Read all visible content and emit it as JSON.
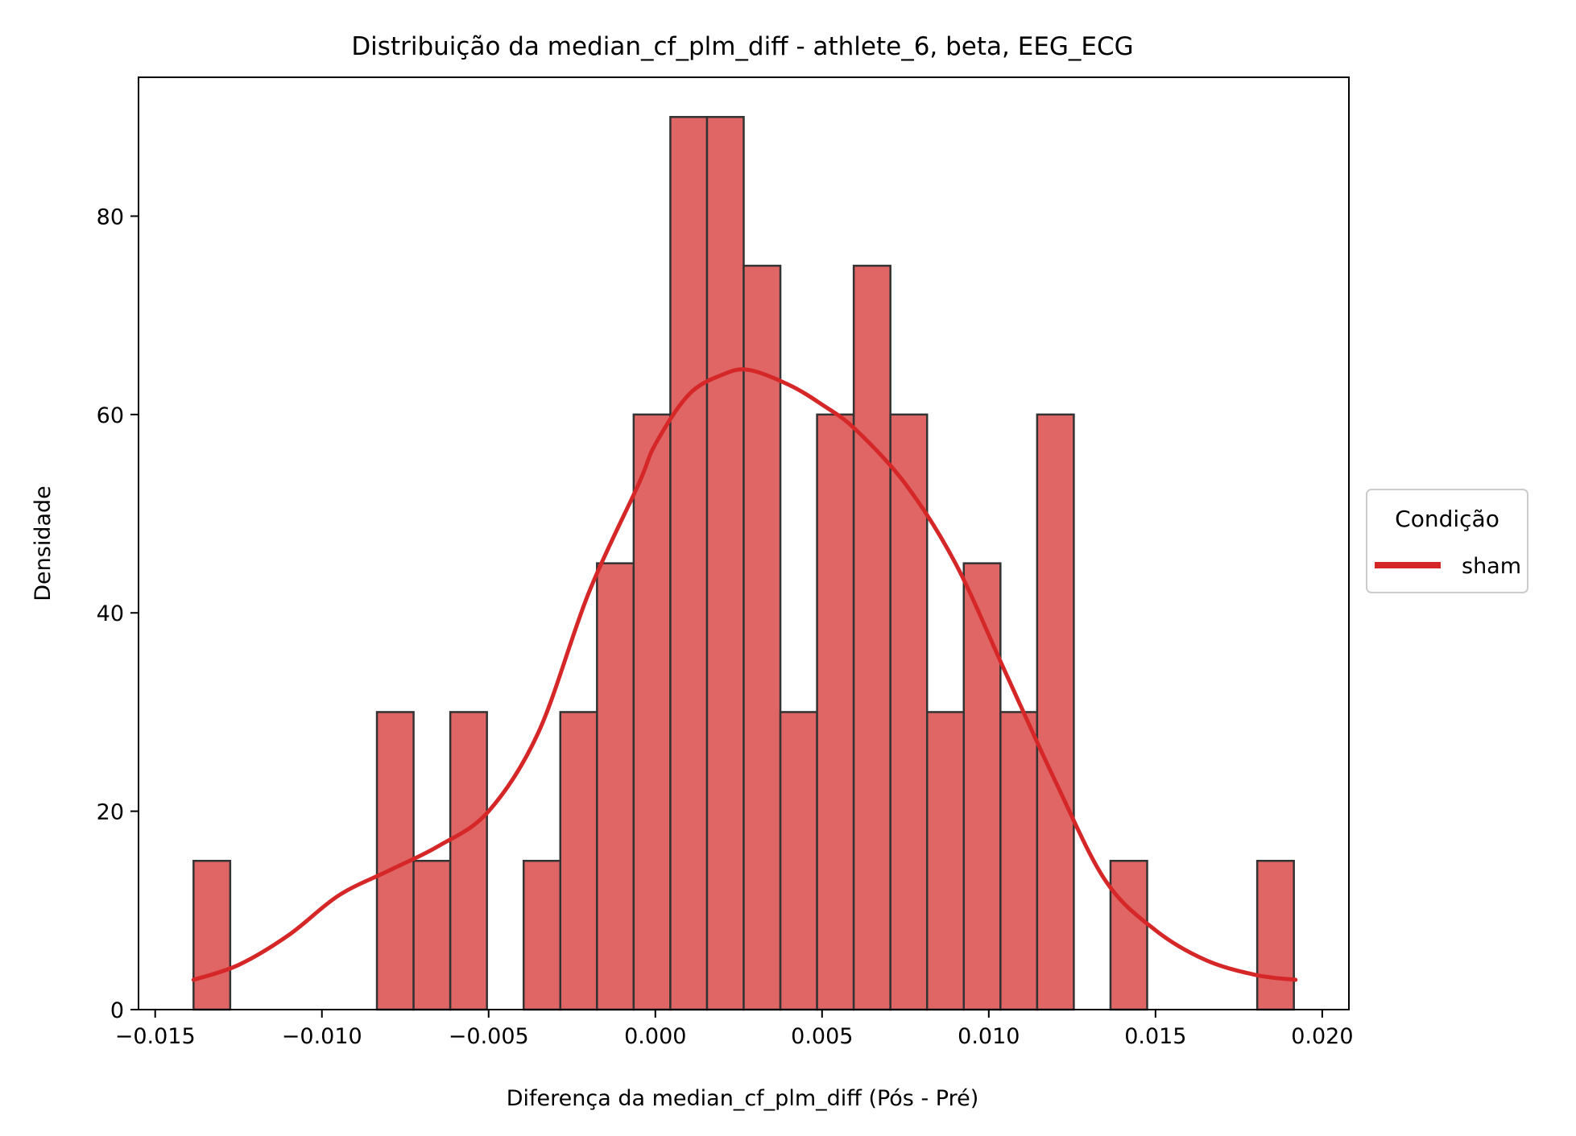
{
  "chart_data": {
    "type": "bar",
    "title": "Distribuição da median_cf_plm_diff - athlete_6, beta, EEG_ECG",
    "xlabel": "Diferença da median_cf_plm_diff (Pós - Pré)",
    "ylabel": "Densidade",
    "xlim": [
      -0.0155,
      0.0208
    ],
    "ylim": [
      0,
      94
    ],
    "x_ticks": [
      {
        "value": -0.015,
        "label": "−0.015"
      },
      {
        "value": -0.01,
        "label": "−0.010"
      },
      {
        "value": -0.005,
        "label": "−0.005"
      },
      {
        "value": 0.0,
        "label": "0.000"
      },
      {
        "value": 0.005,
        "label": "0.005"
      },
      {
        "value": 0.01,
        "label": "0.010"
      },
      {
        "value": 0.015,
        "label": "0.015"
      },
      {
        "value": 0.02,
        "label": "0.020"
      }
    ],
    "y_ticks": [
      {
        "value": 0,
        "label": "0"
      },
      {
        "value": 20,
        "label": "20"
      },
      {
        "value": 40,
        "label": "40"
      },
      {
        "value": 60,
        "label": "60"
      },
      {
        "value": 80,
        "label": "80"
      }
    ],
    "grid": false,
    "bin_start": -0.01385,
    "bin_width": 0.0011,
    "histogram_density": [
      15,
      0,
      0,
      0,
      0,
      30,
      15,
      30,
      0,
      15,
      30,
      45,
      60,
      90,
      90,
      75,
      30,
      60,
      75,
      60,
      30,
      45,
      30,
      60,
      0,
      15,
      0,
      0,
      0,
      15
    ],
    "kde_curve": {
      "x": [
        -0.01385,
        -0.0125,
        -0.011,
        -0.0095,
        -0.008,
        -0.0065,
        -0.005,
        -0.0035,
        -0.002,
        -0.0005,
        0.0,
        0.001,
        0.002,
        0.0028,
        0.004,
        0.005,
        0.006,
        0.0075,
        0.009,
        0.0105,
        0.012,
        0.0135,
        0.015,
        0.0165,
        0.018,
        0.0192
      ],
      "y": [
        3,
        4.5,
        7.5,
        11.5,
        14,
        16.5,
        20,
        28,
        42,
        53,
        57,
        62,
        64,
        64.5,
        63,
        61,
        58.5,
        53,
        45,
        34,
        23,
        13,
        8,
        5,
        3.5,
        3
      ]
    },
    "series": [
      {
        "name": "sham",
        "color": "#d62728",
        "bar_fill": "#e06666",
        "bar_edge": "#333333"
      }
    ],
    "legend": {
      "title": "Condição",
      "placement": "center-right outside"
    }
  }
}
